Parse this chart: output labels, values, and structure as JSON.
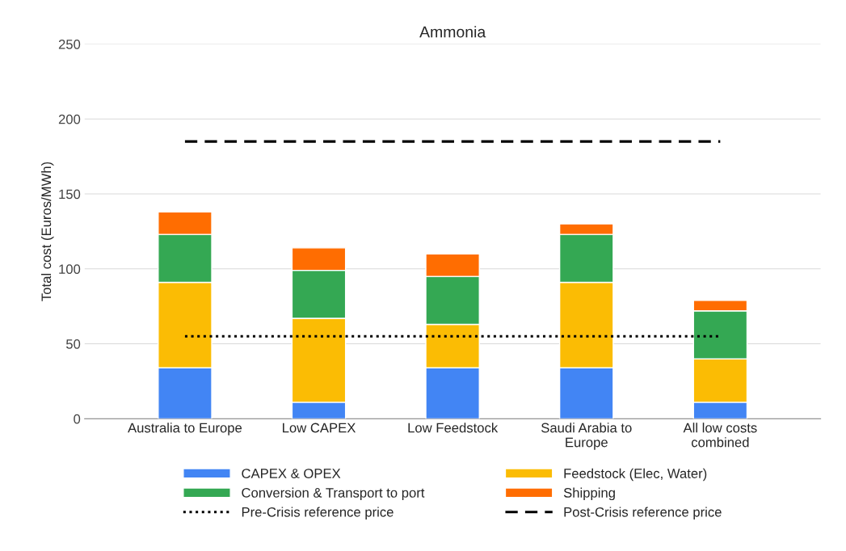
{
  "chart_data": {
    "type": "bar",
    "title": "Ammonia",
    "ylabel": "Total cost (Euros/MWh)",
    "categories": [
      "Australia to Europe",
      "Low CAPEX",
      "Low Feedstock",
      "Saudi Arabia to\nEurope",
      "All low costs\ncombined"
    ],
    "stacked": true,
    "series": [
      {
        "name": "CAPEX & OPEX",
        "color": "#4285f4",
        "values": [
          34,
          11,
          34,
          34,
          11
        ]
      },
      {
        "name": "Feedstock (Elec, Water)",
        "color": "#fbbc04",
        "values": [
          57,
          56,
          29,
          57,
          29
        ]
      },
      {
        "name": "Conversion & Transport to port",
        "color": "#34a853",
        "values": [
          32,
          32,
          32,
          32,
          32
        ]
      },
      {
        "name": "Shipping",
        "color": "#ff6d01",
        "values": [
          15,
          15,
          15,
          7,
          7
        ]
      }
    ],
    "ref_lines": [
      {
        "axis": "y",
        "value": 55,
        "label": "Pre-Crisis reference price",
        "color": "#000000",
        "line_style": "dotted"
      },
      {
        "axis": "y",
        "value": 185,
        "label": "Post-Crisis reference price",
        "color": "#000000",
        "line_style": "dashed"
      }
    ],
    "ylim": [
      0,
      250
    ],
    "yticks": [
      0,
      50,
      100,
      150,
      200,
      250
    ],
    "grid": "y",
    "legend": "bottom"
  }
}
